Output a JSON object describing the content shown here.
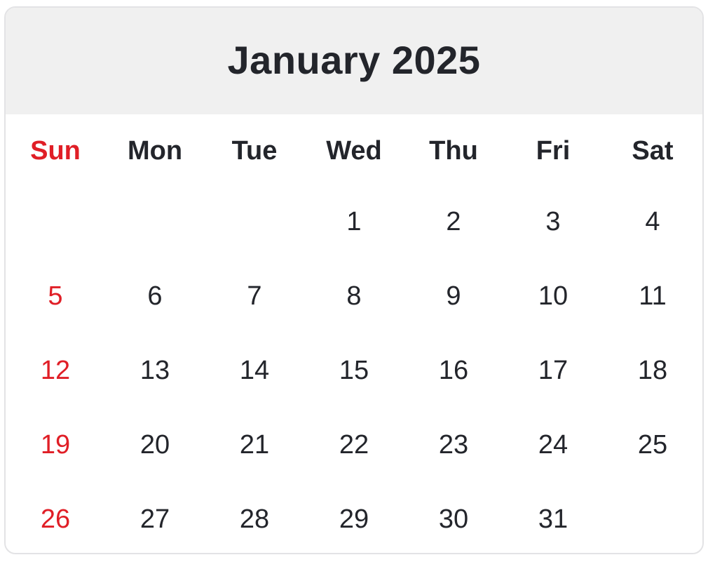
{
  "calendar": {
    "title": "January 2025",
    "weekdays": [
      "Sun",
      "Mon",
      "Tue",
      "Wed",
      "Thu",
      "Fri",
      "Sat"
    ],
    "weeks": [
      [
        "",
        "",
        "",
        "1",
        "2",
        "3",
        "4"
      ],
      [
        "5",
        "6",
        "7",
        "8",
        "9",
        "10",
        "11"
      ],
      [
        "12",
        "13",
        "14",
        "15",
        "16",
        "17",
        "18"
      ],
      [
        "19",
        "20",
        "21",
        "22",
        "23",
        "24",
        "25"
      ],
      [
        "26",
        "27",
        "28",
        "29",
        "30",
        "31",
        ""
      ]
    ]
  },
  "colors": {
    "header_bg": "#f0f0f0",
    "text": "#23252b",
    "sunday": "#e01e26",
    "border": "#e3e3e5"
  }
}
